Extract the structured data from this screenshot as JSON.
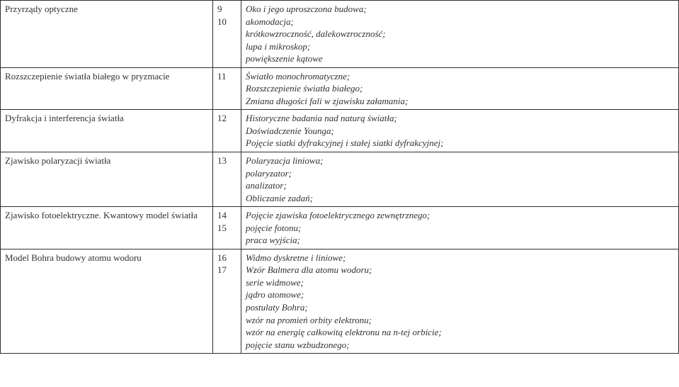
{
  "rows": [
    {
      "topic": "Przyrządy optyczne",
      "nums": [
        "9",
        "10"
      ],
      "desc": [
        "Oko i jego uproszczona budowa;",
        "akomodacja;",
        "krótkowzroczność, dalekowzroczność;",
        " lupa i mikroskop;",
        "powiększenie kątowe"
      ]
    },
    {
      "topic": "Rozszczepienie światła białego w pryzmacie",
      "nums": [
        "11"
      ],
      "desc": [
        "Światło monochromatyczne;",
        "Rozszczepienie światła białego;",
        "Zmiana długości fali w zjawisku załamania;"
      ]
    },
    {
      "topic": "Dyfrakcja i interferencja światła",
      "nums": [
        "12"
      ],
      "desc": [
        "Historyczne badania nad naturą światła;",
        "Doświadczenie Younga;",
        "Pojęcie siatki dyfrakcyjnej i stałej siatki dyfrakcyjnej;"
      ]
    },
    {
      "topic": "Zjawisko polaryzacji światła",
      "nums": [
        "13"
      ],
      "desc": [
        "Polaryzacja liniowa;",
        "polaryzator;",
        "analizator;",
        "Obliczanie zadań;"
      ]
    },
    {
      "topic": "Zjawisko fotoelektryczne. Kwantowy model światła",
      "nums": [
        "14",
        "15"
      ],
      "desc": [
        "Pojęcie zjawiska fotoelektrycznego zewnętrznego;",
        "pojęcie fotonu;",
        "praca wyjścia;"
      ]
    },
    {
      "topic": "Model Bohra budowy atomu wodoru",
      "nums": [
        "16",
        "17"
      ],
      "desc": [
        "Widmo dyskretne i liniowe;",
        "Wzór Balmera dla atomu wodoru;",
        "serie widmowe;",
        "jądro atomowe;",
        "postulaty Bohra;",
        "wzór na promień orbity elektronu;",
        "wzór na energię całkowitą elektronu na n-tej orbicie;",
        "pojęcie stanu wzbudzonego;"
      ]
    }
  ]
}
